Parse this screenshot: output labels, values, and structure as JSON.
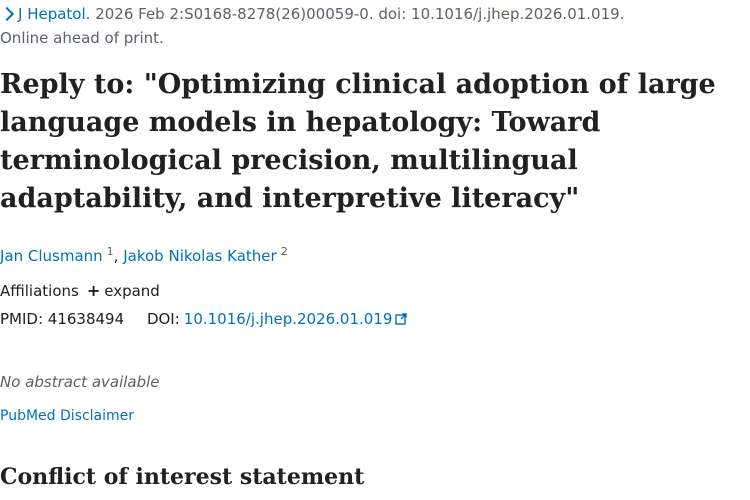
{
  "citation": {
    "journal": "J Hepatol.",
    "details": "2026 Feb 2:S0168-8278(26)00059-0. doi: 10.1016/j.jhep.2026.01.019.",
    "status": "Online ahead of print."
  },
  "article": {
    "title": "Reply to: \"Optimizing clinical adoption of large language models in hepatology: Toward terminological precision, multilingual adaptability, and interpretive literacy\"",
    "authors": [
      {
        "name": "Jan Clusmann",
        "aff": "1"
      },
      {
        "name": "Jakob Nikolas Kather",
        "aff": "2"
      }
    ],
    "author_separator": ",",
    "affiliations_label": "Affiliations",
    "expand_label": "expand",
    "expand_symbol": "+",
    "pmid_label": "PMID:",
    "pmid": "41638494",
    "doi_label": "DOI:",
    "doi": "10.1016/j.jhep.2026.01.019",
    "no_abstract": "No abstract available",
    "disclaimer_link": "PubMed Disclaimer",
    "coi_heading": "Conflict of interest statement"
  },
  "colors": {
    "link": "#0071bc",
    "muted": "#5b616b",
    "text": "#212121"
  },
  "icons": {
    "breadcrumb": "chevron-right-icon",
    "external": "external-link-icon",
    "expand": "plus-icon"
  }
}
